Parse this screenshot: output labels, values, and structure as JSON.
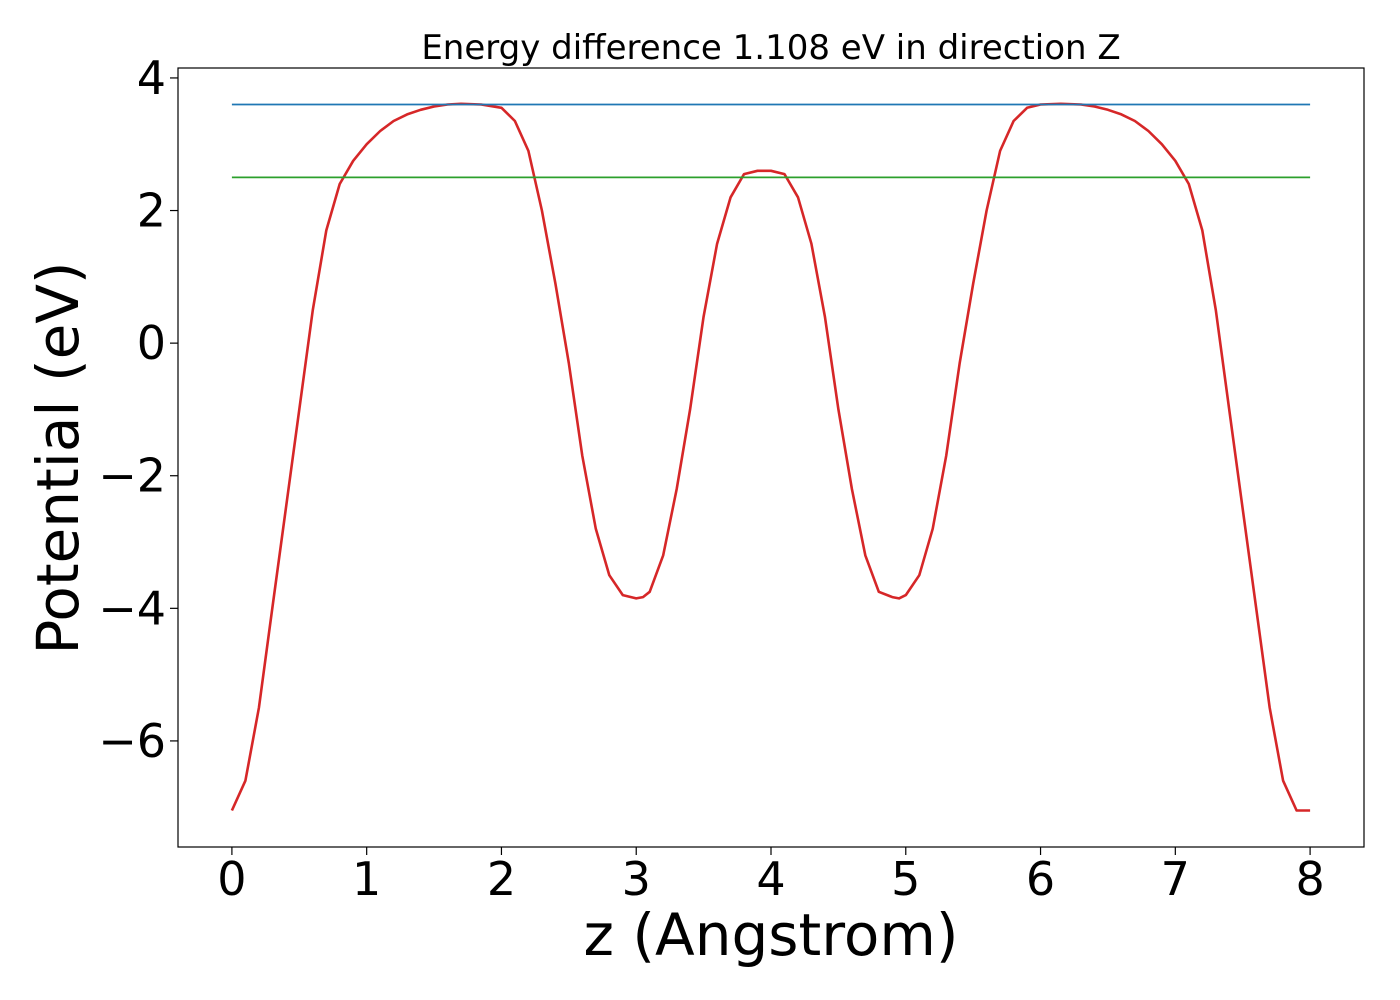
{
  "chart_data": {
    "type": "line",
    "title": "Energy difference 1.108 eV in direction Z",
    "xlabel": "z (Angstrom)",
    "ylabel": "Potential (eV)",
    "xlim": [
      -0.4,
      8.4
    ],
    "ylim": [
      -7.6,
      4.15
    ],
    "x_ticks": [
      0,
      1,
      2,
      3,
      4,
      5,
      6,
      7,
      8
    ],
    "y_ticks": [
      -6,
      -4,
      -2,
      0,
      2,
      4
    ],
    "x_tick_labels": [
      "0",
      "1",
      "2",
      "3",
      "4",
      "5",
      "6",
      "7",
      "8"
    ],
    "y_tick_labels": [
      "−6",
      "−4",
      "−2",
      "0",
      "2",
      "4"
    ],
    "grid": false,
    "series": [
      {
        "color": "#d62728",
        "x": [
          0.0,
          0.1,
          0.2,
          0.3,
          0.4,
          0.5,
          0.6,
          0.7,
          0.8,
          0.9,
          1.0,
          1.1,
          1.2,
          1.3,
          1.4,
          1.5,
          1.6,
          1.7,
          1.85,
          2.0,
          2.1,
          2.2,
          2.3,
          2.4,
          2.5,
          2.6,
          2.7,
          2.8,
          2.9,
          3.0,
          3.05,
          3.1,
          3.2,
          3.3,
          3.4,
          3.5,
          3.6,
          3.7,
          3.8,
          3.9,
          4.0,
          4.1,
          4.2,
          4.3,
          4.4,
          4.5,
          4.6,
          4.7,
          4.8,
          4.9,
          4.95,
          5.0,
          5.1,
          5.2,
          5.3,
          5.4,
          5.5,
          5.6,
          5.7,
          5.8,
          5.9,
          6.0,
          6.15,
          6.3,
          6.4,
          6.5,
          6.6,
          6.7,
          6.8,
          6.9,
          7.0,
          7.1,
          7.2,
          7.3,
          7.4,
          7.5,
          7.6,
          7.7,
          7.8,
          7.9,
          8.0
        ],
        "y": [
          -7.05,
          -6.6,
          -5.5,
          -4.0,
          -2.5,
          -1.0,
          0.5,
          1.7,
          2.4,
          2.75,
          3.0,
          3.2,
          3.35,
          3.45,
          3.52,
          3.57,
          3.6,
          3.61,
          3.6,
          3.55,
          3.35,
          2.9,
          2.0,
          0.9,
          -0.3,
          -1.7,
          -2.8,
          -3.5,
          -3.8,
          -3.85,
          -3.83,
          -3.75,
          -3.2,
          -2.2,
          -1.0,
          0.4,
          1.5,
          2.2,
          2.55,
          2.6,
          2.6,
          2.55,
          2.2,
          1.5,
          0.4,
          -1.0,
          -2.2,
          -3.2,
          -3.75,
          -3.83,
          -3.85,
          -3.8,
          -3.5,
          -2.8,
          -1.7,
          -0.3,
          0.9,
          2.0,
          2.9,
          3.35,
          3.55,
          3.6,
          3.61,
          3.6,
          3.57,
          3.52,
          3.45,
          3.35,
          3.2,
          3.0,
          2.75,
          2.4,
          1.7,
          0.5,
          -1.0,
          -2.5,
          -4.0,
          -5.5,
          -6.6,
          -7.05,
          -7.05
        ]
      },
      {
        "color": "#1f77b4",
        "x": [
          0,
          8
        ],
        "y": [
          3.6,
          3.6
        ]
      },
      {
        "color": "#2ca02c",
        "x": [
          0,
          8
        ],
        "y": [
          2.5,
          2.5
        ]
      }
    ]
  }
}
